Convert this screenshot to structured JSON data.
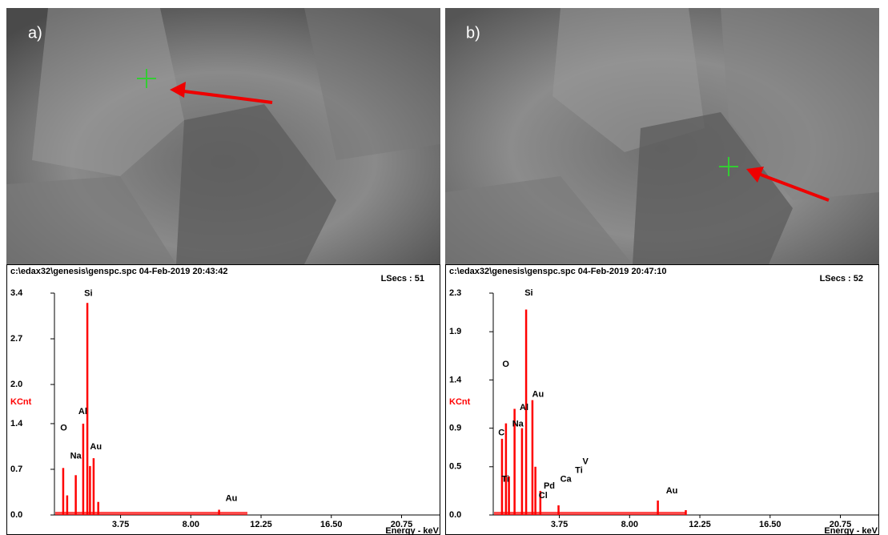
{
  "panels": [
    {
      "label": "a)"
    },
    {
      "label": "b)"
    }
  ],
  "chart_data": [
    {
      "type": "spectrum",
      "header": "c:\\edax32\\genesis\\genspc.spc  04-Feb-2019 20:43:42",
      "live_time": "LSecs :  51",
      "y_label": "KCnt",
      "x_label": "Energy - keV",
      "color": "#ff0000",
      "xlim": [
        -0.25,
        23.1
      ],
      "ylim": [
        0,
        3.4
      ],
      "xticks": [
        3.75,
        {
          "value": 8,
          "label": "8.00"
        },
        12.25,
        {
          "value": 16.5,
          "label": "16.50"
        },
        20.75
      ],
      "yticks": [
        {
          "value": 0,
          "label": "0.0"
        },
        0.7,
        1.4,
        {
          "value": 2,
          "label": "2.0"
        },
        2.7,
        3.4
      ],
      "x": [
        0.28,
        0.52,
        1.04,
        1.49,
        1.74,
        1.9,
        2.12,
        2.4,
        9.71
      ],
      "values": [
        0.72,
        0.3,
        0.61,
        1.4,
        3.25,
        0.75,
        0.87,
        0.2,
        0.08
      ],
      "annotations": [
        {
          "text": "O",
          "x": 0.1,
          "y": 1.33
        },
        {
          "text": "Na",
          "x": 0.7,
          "y": 0.9
        },
        {
          "text": "Al",
          "x": 1.2,
          "y": 1.58
        },
        {
          "text": "Si",
          "x": 1.55,
          "y": 3.39
        },
        {
          "text": "Au",
          "x": 1.9,
          "y": 1.04
        },
        {
          "text": "Au",
          "x": 10.1,
          "y": 0.25
        }
      ]
    },
    {
      "type": "spectrum",
      "header": "c:\\edax32\\genesis\\genspc.spc  04-Feb-2019 20:47:10",
      "live_time": "LSecs :  52",
      "y_label": "KCnt",
      "x_label": "Energy - keV",
      "color": "#ff0000",
      "xlim": [
        -0.25,
        23.1
      ],
      "ylim": [
        0,
        2.3
      ],
      "xticks": [
        3.75,
        {
          "value": 8,
          "label": "8.00"
        },
        12.25,
        {
          "value": 16.5,
          "label": "16.50"
        },
        20.75
      ],
      "yticks": [
        {
          "value": 0,
          "label": "0.0"
        },
        0.5,
        0.9,
        1.4,
        1.9,
        2.3
      ],
      "x": [
        0.28,
        0.52,
        0.7,
        1.04,
        1.49,
        1.74,
        2.12,
        2.3,
        2.6,
        3.7,
        9.71,
        11.4
      ],
      "values": [
        0.79,
        0.95,
        0.4,
        1.1,
        0.9,
        2.13,
        1.19,
        0.5,
        0.25,
        0.1,
        0.15,
        0.05
      ],
      "annotations": [
        {
          "text": "O",
          "x": 0.3,
          "y": 1.56
        },
        {
          "text": "C",
          "x": 0.05,
          "y": 0.85
        },
        {
          "text": "Na",
          "x": 0.9,
          "y": 0.94
        },
        {
          "text": "Al",
          "x": 1.35,
          "y": 1.11
        },
        {
          "text": "Au",
          "x": 2.1,
          "y": 1.25
        },
        {
          "text": "Si",
          "x": 1.65,
          "y": 2.3
        },
        {
          "text": "Ti",
          "x": 0.25,
          "y": 0.37
        },
        {
          "text": "Pd",
          "x": 2.8,
          "y": 0.3
        },
        {
          "text": "Cl",
          "x": 2.5,
          "y": 0.2
        },
        {
          "text": "Ca",
          "x": 3.8,
          "y": 0.37
        },
        {
          "text": "Ti",
          "x": 4.7,
          "y": 0.46
        },
        {
          "text": "V",
          "x": 5.15,
          "y": 0.55
        },
        {
          "text": "Au",
          "x": 10.2,
          "y": 0.25
        }
      ]
    }
  ]
}
